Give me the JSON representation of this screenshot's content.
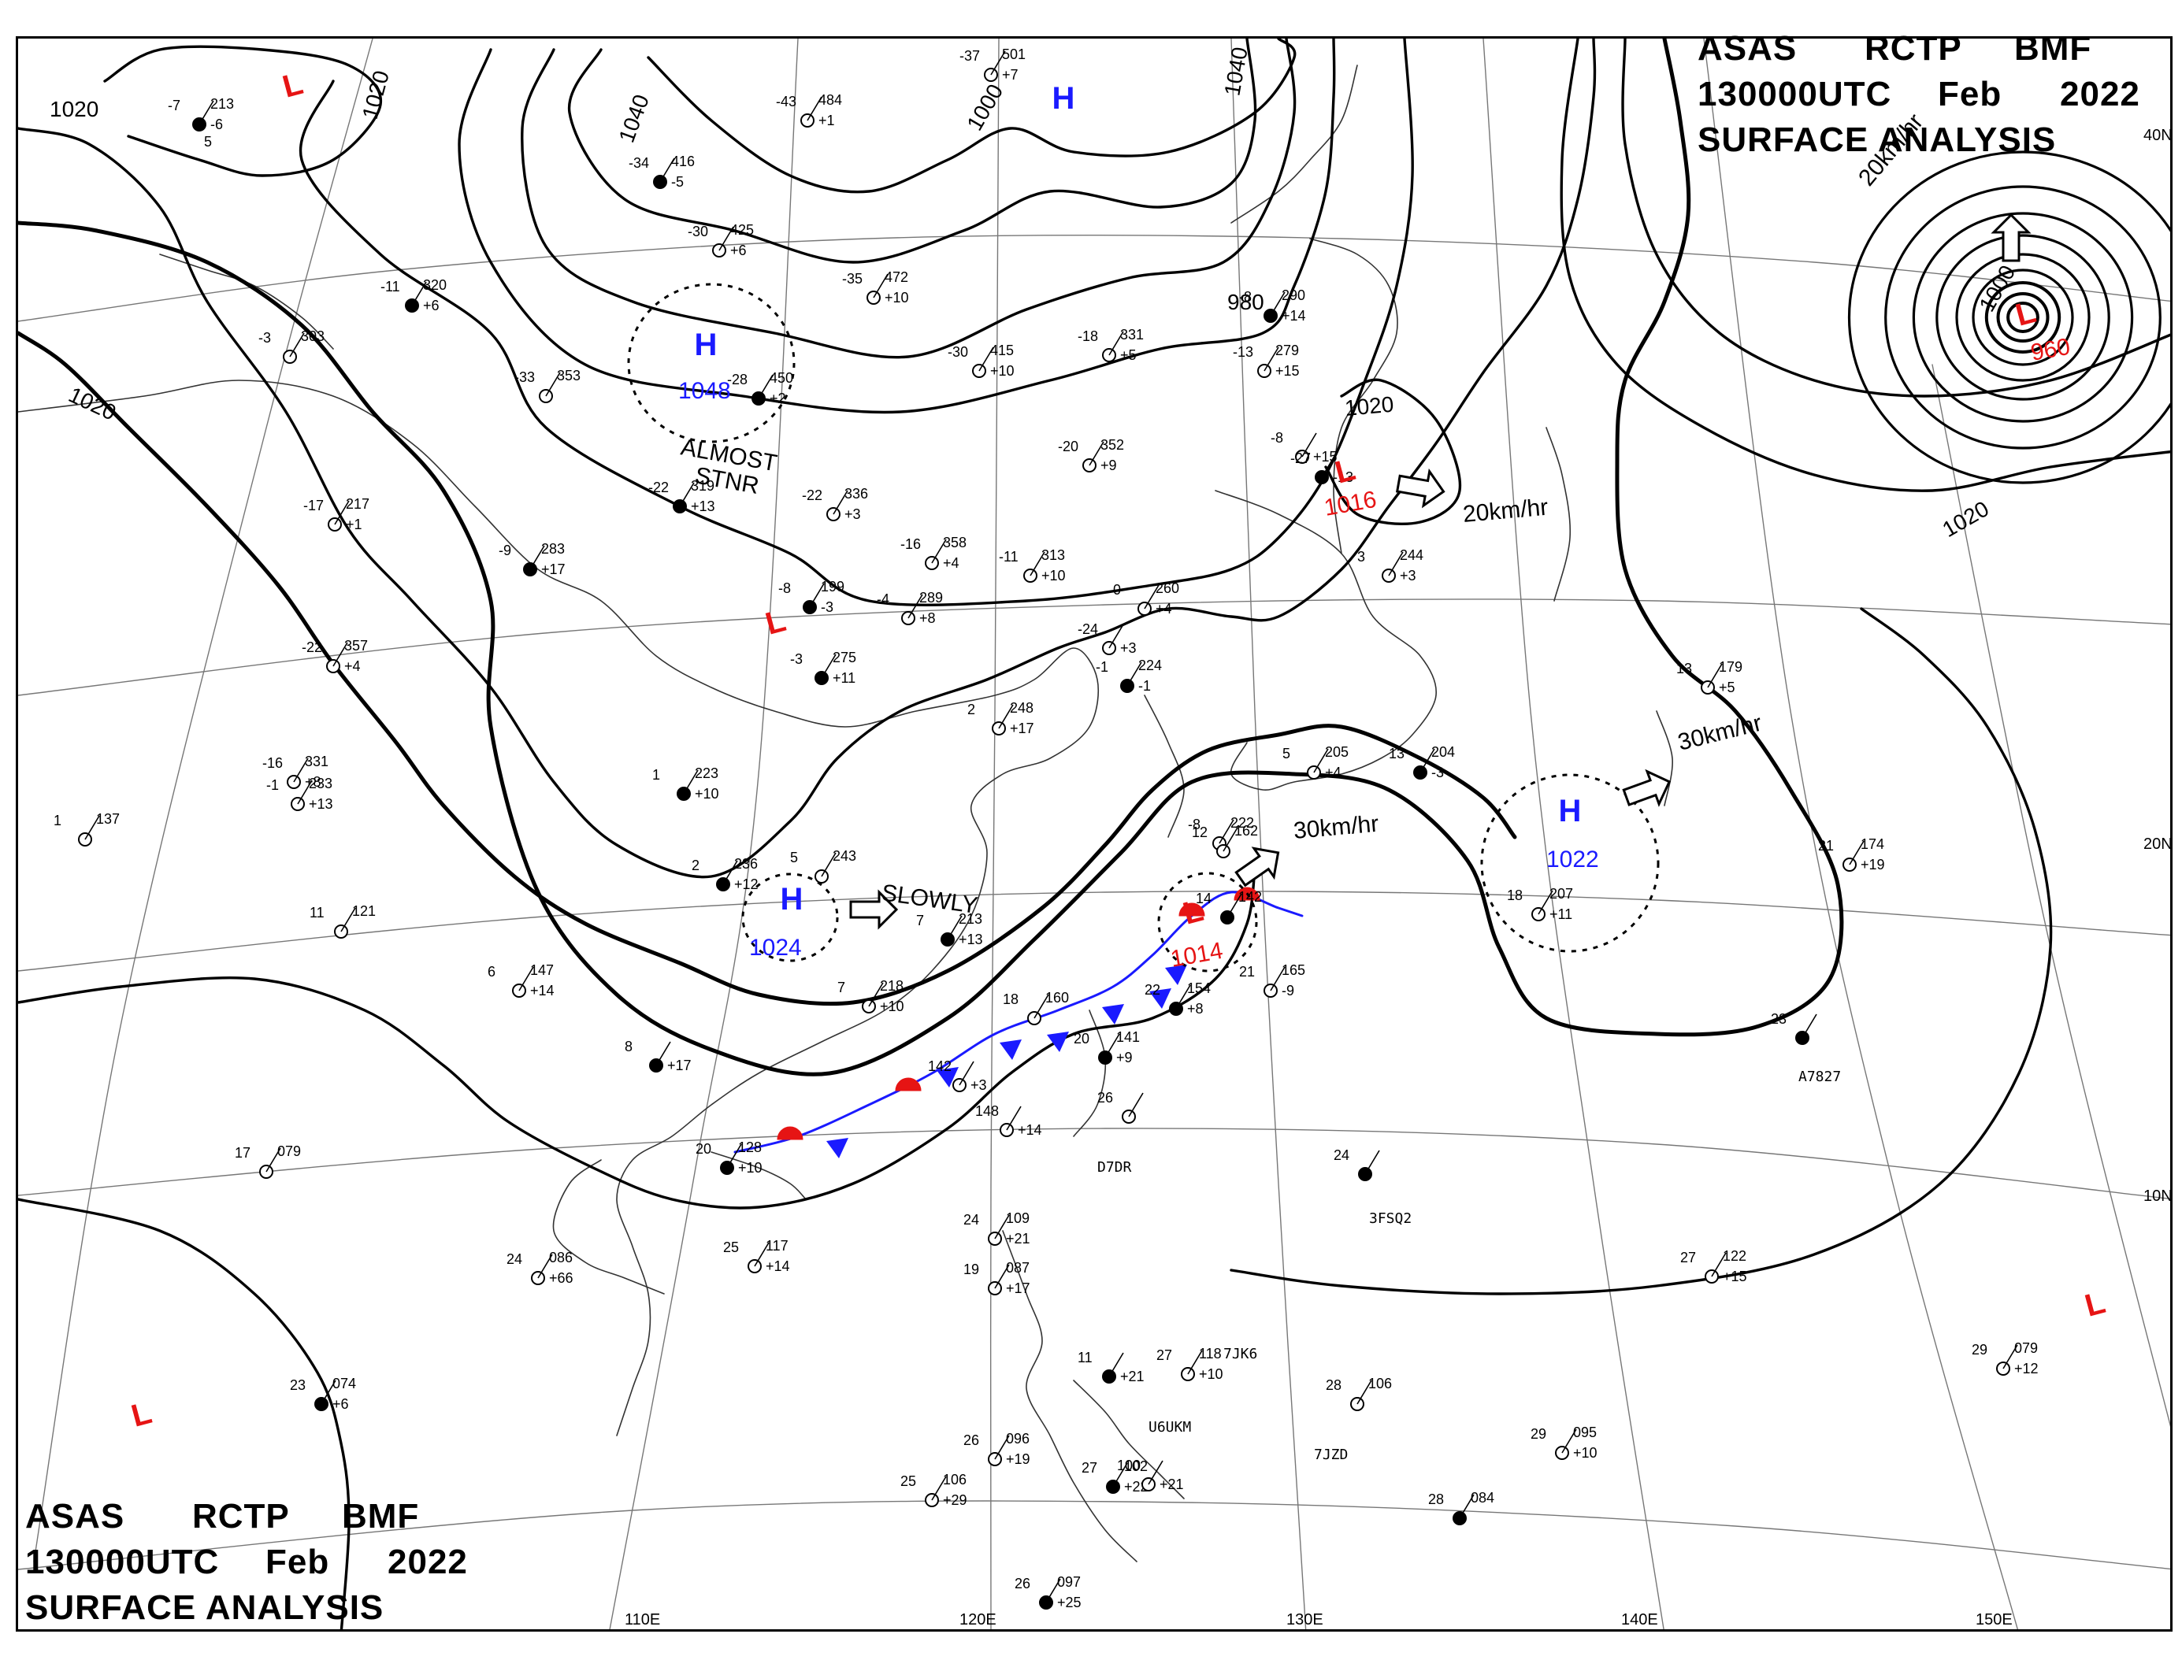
{
  "title_block": {
    "line1": [
      "ASAS",
      "RCTP",
      "BMF"
    ],
    "line2": [
      "130000UTC",
      "Feb",
      "2022"
    ],
    "line3": "SURFACE  ANALYSIS"
  },
  "colors": {
    "high": "#1a1aff",
    "low": "#e61414",
    "front_warm": "#e61414",
    "front_cold": "#1a1aff",
    "isobar": "#000000",
    "coast": "#333333",
    "grid": "#777777"
  },
  "longitude_labels": [
    "110E",
    "120E",
    "130E",
    "140E",
    "150E"
  ],
  "latitude_labels": [
    "40N",
    "20N",
    "10N"
  ],
  "isobar_labels": [
    "1020",
    "1020",
    "1040",
    "1040",
    "1020",
    "1020",
    "1000",
    "980",
    "1000",
    "1020"
  ],
  "pressure_centers": [
    {
      "type": "H",
      "value": "1048",
      "note": "ALMOST STNR"
    },
    {
      "type": "H",
      "value": ""
    },
    {
      "type": "H",
      "value": "1024",
      "note": "SLOWLY"
    },
    {
      "type": "H",
      "value": "1022",
      "speed": "30km/hr"
    },
    {
      "type": "L",
      "value": "1016",
      "speed": "20km/hr"
    },
    {
      "type": "L",
      "value": "1014",
      "speed": "30km/hr"
    },
    {
      "type": "L",
      "value": "960",
      "speed": "20km/hr"
    },
    {
      "type": "L",
      "value": ""
    },
    {
      "type": "L",
      "value": ""
    },
    {
      "type": "L",
      "value": ""
    },
    {
      "type": "L",
      "value": ""
    }
  ],
  "ship_callsigns": [
    "A7827",
    "D7DR",
    "3FSQ2",
    "7JK6",
    "U6UKM",
    "7JZD"
  ],
  "stations": [
    {
      "temp": "-7",
      "pres": "213",
      "tend": "-6",
      "extra": "5"
    },
    {
      "temp": "-37",
      "pres": "501",
      "tend": "+7"
    },
    {
      "temp": "-43",
      "pres": "484",
      "tend": "+1"
    },
    {
      "temp": "-34",
      "pres": "416",
      "tend": "-5"
    },
    {
      "temp": "-30",
      "pres": "425",
      "tend": "+6"
    },
    {
      "temp": "-35",
      "pres": "472",
      "tend": "+10"
    },
    {
      "temp": "-11",
      "pres": "320",
      "tend": "+6"
    },
    {
      "temp": "-3",
      "pres": "303",
      "tend": ""
    },
    {
      "temp": "-33",
      "pres": "353",
      "tend": ""
    },
    {
      "temp": "-28",
      "pres": "450",
      "tend": "+2"
    },
    {
      "temp": "-30",
      "pres": "415",
      "tend": "+10"
    },
    {
      "temp": "-18",
      "pres": "331",
      "tend": "+5"
    },
    {
      "temp": "-8",
      "pres": "290",
      "tend": "+14"
    },
    {
      "temp": "-13",
      "pres": "279",
      "tend": "+15"
    },
    {
      "temp": "-20",
      "pres": "352",
      "tend": "+9"
    },
    {
      "temp": "-22",
      "pres": "319",
      "tend": "+13"
    },
    {
      "temp": "-22",
      "pres": "336",
      "tend": "+3"
    },
    {
      "temp": "-17",
      "pres": "217",
      "tend": "+1"
    },
    {
      "temp": "-9",
      "pres": "283",
      "tend": "+17"
    },
    {
      "temp": "-16",
      "pres": "358",
      "tend": "+4"
    },
    {
      "temp": "-11",
      "pres": "313",
      "tend": "+10"
    },
    {
      "temp": "-8",
      "pres": "199",
      "tend": "-3"
    },
    {
      "temp": "-4",
      "pres": "289",
      "tend": "+8"
    },
    {
      "temp": "-22",
      "pres": "357",
      "tend": "+4"
    },
    {
      "temp": "-3",
      "pres": "275",
      "tend": "+11"
    },
    {
      "temp": "0",
      "pres": "260",
      "tend": "+4"
    },
    {
      "temp": "-24",
      "pres": "",
      "tend": "+3"
    },
    {
      "temp": "-1",
      "pres": "224",
      "tend": "-1"
    },
    {
      "temp": "-16",
      "pres": "331",
      "tend": "+8"
    },
    {
      "temp": "1",
      "pres": "137",
      "tend": ""
    },
    {
      "temp": "1",
      "pres": "223",
      "tend": "+10"
    },
    {
      "temp": "2",
      "pres": "248",
      "tend": "+17"
    },
    {
      "temp": "-1",
      "pres": "233",
      "tend": "+13"
    },
    {
      "temp": "2",
      "pres": "236",
      "tend": "+12"
    },
    {
      "temp": "5",
      "pres": "243",
      "tend": ""
    },
    {
      "temp": "11",
      "pres": "121",
      "tend": ""
    },
    {
      "temp": "7",
      "pres": "213",
      "tend": "+13"
    },
    {
      "temp": "7",
      "pres": "218",
      "tend": "+10"
    },
    {
      "temp": "6",
      "pres": "147",
      "tend": "+14"
    },
    {
      "temp": "8",
      "pres": "",
      "tend": "+17"
    },
    {
      "temp": "18",
      "pres": "160",
      "tend": ""
    },
    {
      "temp": "142",
      "pres": "",
      "tend": "+3"
    },
    {
      "temp": "20",
      "pres": "141",
      "tend": "+9"
    },
    {
      "temp": "148",
      "pres": "",
      "tend": "+14"
    },
    {
      "temp": "26",
      "pres": "",
      "tend": ""
    },
    {
      "temp": "22",
      "pres": "154",
      "tend": "+8"
    },
    {
      "temp": "21",
      "pres": "165",
      "tend": "-9"
    },
    {
      "temp": "17",
      "pres": "079",
      "tend": ""
    },
    {
      "temp": "20",
      "pres": "128",
      "tend": "+10"
    },
    {
      "temp": "25",
      "pres": "117",
      "tend": "+14"
    },
    {
      "temp": "24",
      "pres": "086",
      "tend": "+66"
    },
    {
      "temp": "23",
      "pres": "074",
      "tend": "+6"
    },
    {
      "temp": "24",
      "pres": "109",
      "tend": "+21"
    },
    {
      "temp": "19",
      "pres": "087",
      "tend": "+17"
    },
    {
      "temp": "11",
      "pres": "",
      "tend": "+21"
    },
    {
      "temp": "27",
      "pres": "118",
      "tend": "+10"
    },
    {
      "temp": "26",
      "pres": "096",
      "tend": "+19"
    },
    {
      "temp": "27",
      "pres": "102",
      "tend": "+22"
    },
    {
      "temp": "100",
      "pres": "",
      "tend": "+21"
    },
    {
      "temp": "25",
      "pres": "106",
      "tend": "+29"
    },
    {
      "temp": "26",
      "pres": "097",
      "tend": "+25"
    },
    {
      "temp": "28",
      "pres": "106",
      "tend": ""
    },
    {
      "temp": "29",
      "pres": "095",
      "tend": "+10"
    },
    {
      "temp": "28",
      "pres": "084",
      "tend": ""
    },
    {
      "temp": "29",
      "pres": "079",
      "tend": "+12"
    },
    {
      "temp": "27",
      "pres": "122",
      "tend": "+15"
    },
    {
      "temp": "24",
      "pres": "",
      "tend": ""
    },
    {
      "temp": "13",
      "pres": "179",
      "tend": "+5"
    },
    {
      "temp": "21",
      "pres": "174",
      "tend": "+19"
    },
    {
      "temp": "23",
      "pres": "",
      "tend": ""
    },
    {
      "temp": "18",
      "pres": "207",
      "tend": "+11"
    },
    {
      "temp": "5",
      "pres": "205",
      "tend": "+4"
    },
    {
      "temp": "13",
      "pres": "204",
      "tend": "-3"
    },
    {
      "temp": "3",
      "pres": "244",
      "tend": "+3"
    },
    {
      "temp": "-8",
      "pres": "",
      "tend": "+15"
    },
    {
      "temp": "-27",
      "pres": "",
      "tend": "-13"
    },
    {
      "temp": "-8",
      "pres": "222",
      "tend": ""
    },
    {
      "temp": "12",
      "pres": "162",
      "tend": ""
    },
    {
      "temp": "14",
      "pres": "142",
      "tend": ""
    }
  ]
}
